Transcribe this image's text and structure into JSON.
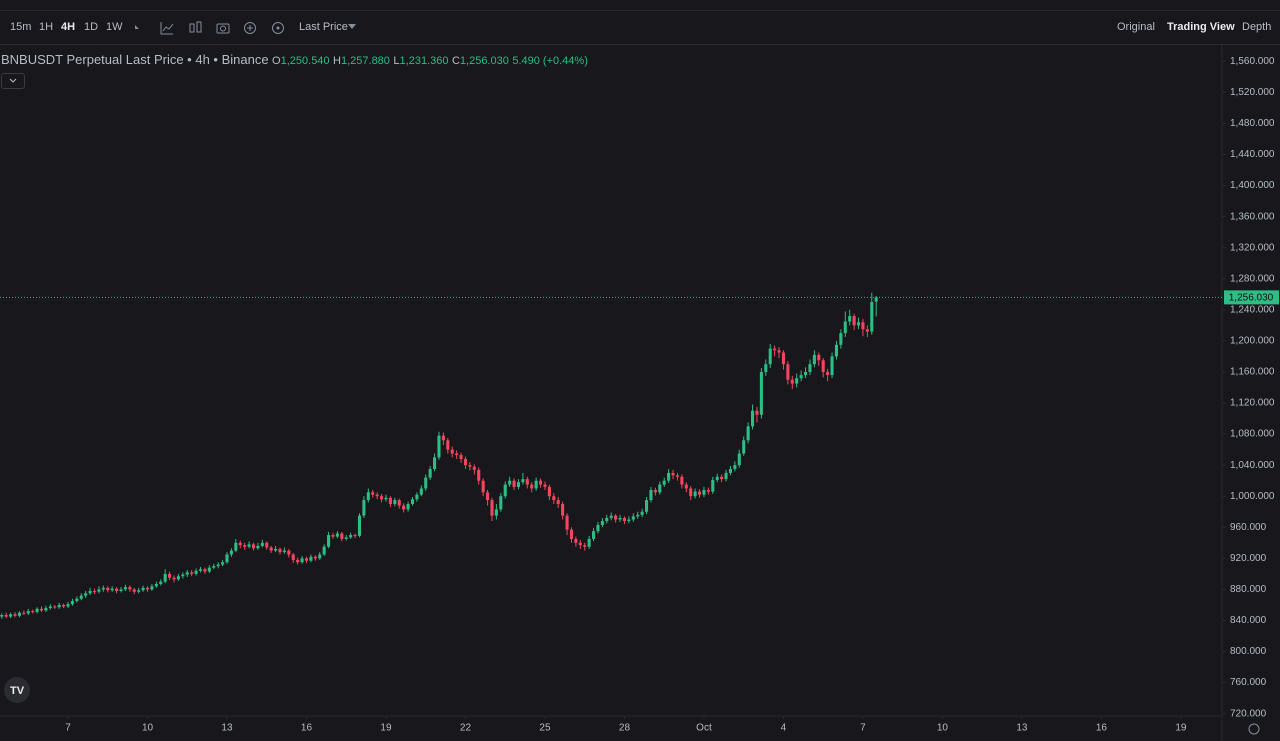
{
  "toolbar": {
    "intervals": [
      "15m",
      "1H",
      "4H",
      "1D",
      "1W"
    ],
    "price_source": "Last Price",
    "views": [
      "Original",
      "Trading View",
      "Depth"
    ]
  },
  "chart_data": {
    "type": "candlestick",
    "title": "BNBUSDT Perpetual Last Price • 4h • Binance",
    "header_values": [
      {
        "prefix": "O",
        "value": "1,250.540"
      },
      {
        "prefix": "H",
        "value": "1,257.880"
      },
      {
        "prefix": "L",
        "value": "1,231.360"
      },
      {
        "prefix": "C",
        "value": "1,256.030"
      }
    ],
    "change": "5.490 (+0.44%)",
    "up_color": "#2ebd85",
    "down_color": "#f6465d",
    "ylim": [
      717,
      1581
    ],
    "yticks": [
      {
        "value": 720,
        "label": "720.000"
      },
      {
        "value": 760,
        "label": "760.000"
      },
      {
        "value": 800,
        "label": "800.000"
      },
      {
        "value": 840,
        "label": "840.000"
      },
      {
        "value": 880,
        "label": "880.000"
      },
      {
        "value": 920,
        "label": "920.000"
      },
      {
        "value": 960,
        "label": "960.000"
      },
      {
        "value": 1000,
        "label": "1,000.000"
      },
      {
        "value": 1040,
        "label": "1,040.000"
      },
      {
        "value": 1080,
        "label": "1,080.000"
      },
      {
        "value": 1120,
        "label": "1,120.000"
      },
      {
        "value": 1160,
        "label": "1,160.000"
      },
      {
        "value": 1200,
        "label": "1,200.000"
      },
      {
        "value": 1240,
        "label": "1,240.000"
      },
      {
        "value": 1280,
        "label": "1,280.000"
      },
      {
        "value": 1320,
        "label": "1,320.000"
      },
      {
        "value": 1360,
        "label": "1,360.000"
      },
      {
        "value": 1400,
        "label": "1,400.000"
      },
      {
        "value": 1440,
        "label": "1,440.000"
      },
      {
        "value": 1480,
        "label": "1,480.000"
      },
      {
        "value": 1520,
        "label": "1,520.000"
      },
      {
        "value": 1560,
        "label": "1,560.000"
      }
    ],
    "xlim": [
      -0.4,
      276.3
    ],
    "xticks": [
      {
        "value": 15,
        "label": "7"
      },
      {
        "value": 33,
        "label": "10"
      },
      {
        "value": 51,
        "label": "13"
      },
      {
        "value": 69,
        "label": "16"
      },
      {
        "value": 87,
        "label": "19"
      },
      {
        "value": 105,
        "label": "22"
      },
      {
        "value": 123,
        "label": "25"
      },
      {
        "value": 141,
        "label": "28"
      },
      {
        "value": 159,
        "label": "Oct"
      },
      {
        "value": 177,
        "label": "4"
      },
      {
        "value": 195,
        "label": "7"
      },
      {
        "value": 213,
        "label": "10"
      },
      {
        "value": 231,
        "label": "13"
      },
      {
        "value": 249,
        "label": "16"
      },
      {
        "value": 267,
        "label": "19"
      }
    ],
    "last_price": {
      "value": 1256.03,
      "label": "1,256.030"
    },
    "ohlc": [
      [
        845,
        849,
        842,
        847
      ],
      [
        847,
        850,
        843,
        845
      ],
      [
        845,
        850,
        843,
        848
      ],
      [
        848,
        851,
        844,
        846
      ],
      [
        846,
        852,
        844,
        850
      ],
      [
        850,
        853,
        847,
        849
      ],
      [
        849,
        855,
        847,
        852
      ],
      [
        852,
        854,
        849,
        851
      ],
      [
        851,
        857,
        849,
        855
      ],
      [
        855,
        858,
        851,
        853
      ],
      [
        853,
        859,
        851,
        856
      ],
      [
        856,
        861,
        854,
        858
      ],
      [
        858,
        860,
        855,
        857
      ],
      [
        857,
        863,
        855,
        860
      ],
      [
        860,
        862,
        856,
        858
      ],
      [
        858,
        864,
        856,
        861
      ],
      [
        861,
        868,
        859,
        865
      ],
      [
        865,
        871,
        863,
        868
      ],
      [
        868,
        875,
        866,
        872
      ],
      [
        872,
        878,
        869,
        875
      ],
      [
        875,
        882,
        873,
        878
      ],
      [
        878,
        881,
        874,
        877
      ],
      [
        877,
        884,
        875,
        880
      ],
      [
        880,
        885,
        877,
        882
      ],
      [
        882,
        884,
        876,
        879
      ],
      [
        879,
        884,
        877,
        881
      ],
      [
        881,
        883,
        875,
        878
      ],
      [
        878,
        883,
        876,
        880
      ],
      [
        880,
        886,
        878,
        883
      ],
      [
        883,
        885,
        877,
        880
      ],
      [
        880,
        882,
        874,
        877
      ],
      [
        877,
        882,
        875,
        879
      ],
      [
        879,
        885,
        877,
        882
      ],
      [
        882,
        884,
        877,
        880
      ],
      [
        880,
        887,
        878,
        884
      ],
      [
        884,
        890,
        882,
        887
      ],
      [
        887,
        893,
        885,
        890
      ],
      [
        890,
        906,
        888,
        900
      ],
      [
        900,
        903,
        892,
        895
      ],
      [
        895,
        898,
        889,
        893
      ],
      [
        893,
        900,
        891,
        897
      ],
      [
        897,
        902,
        894,
        899
      ],
      [
        899,
        905,
        896,
        902
      ],
      [
        902,
        905,
        897,
        900
      ],
      [
        900,
        907,
        898,
        904
      ],
      [
        904,
        909,
        902,
        906
      ],
      [
        906,
        908,
        900,
        903
      ],
      [
        903,
        911,
        901,
        908
      ],
      [
        908,
        913,
        906,
        910
      ],
      [
        910,
        915,
        907,
        912
      ],
      [
        912,
        918,
        910,
        915
      ],
      [
        915,
        928,
        913,
        925
      ],
      [
        925,
        933,
        922,
        930
      ],
      [
        930,
        945,
        928,
        940
      ],
      [
        940,
        943,
        933,
        937
      ],
      [
        937,
        940,
        931,
        935
      ],
      [
        935,
        942,
        933,
        938
      ],
      [
        938,
        940,
        930,
        933
      ],
      [
        933,
        940,
        931,
        936
      ],
      [
        936,
        944,
        934,
        940
      ],
      [
        940,
        942,
        931,
        934
      ],
      [
        934,
        936,
        927,
        930
      ],
      [
        930,
        936,
        928,
        932
      ],
      [
        932,
        934,
        925,
        928
      ],
      [
        928,
        934,
        926,
        930
      ],
      [
        930,
        932,
        921,
        925
      ],
      [
        925,
        927,
        914,
        918
      ],
      [
        918,
        921,
        912,
        915
      ],
      [
        915,
        923,
        913,
        920
      ],
      [
        920,
        922,
        914,
        917
      ],
      [
        917,
        925,
        915,
        922
      ],
      [
        922,
        924,
        917,
        920
      ],
      [
        920,
        928,
        918,
        925
      ],
      [
        925,
        938,
        923,
        935
      ],
      [
        935,
        954,
        933,
        950
      ],
      [
        950,
        953,
        945,
        948
      ],
      [
        948,
        955,
        946,
        952
      ],
      [
        952,
        954,
        942,
        945
      ],
      [
        945,
        950,
        943,
        947
      ],
      [
        947,
        953,
        945,
        950
      ],
      [
        950,
        952,
        946,
        949
      ],
      [
        949,
        978,
        947,
        975
      ],
      [
        975,
        1000,
        972,
        995
      ],
      [
        995,
        1010,
        992,
        1005
      ],
      [
        1005,
        1008,
        998,
        1002
      ],
      [
        1002,
        1005,
        996,
        1000
      ],
      [
        1000,
        1003,
        992,
        996
      ],
      [
        996,
        1002,
        993,
        998
      ],
      [
        998,
        1000,
        986,
        990
      ],
      [
        990,
        998,
        987,
        995
      ],
      [
        995,
        997,
        984,
        988
      ],
      [
        988,
        991,
        979,
        983
      ],
      [
        983,
        993,
        980,
        990
      ],
      [
        990,
        999,
        988,
        996
      ],
      [
        996,
        1005,
        993,
        1002
      ],
      [
        1002,
        1014,
        1000,
        1010
      ],
      [
        1010,
        1028,
        1007,
        1024
      ],
      [
        1024,
        1039,
        1021,
        1035
      ],
      [
        1035,
        1055,
        1032,
        1050
      ],
      [
        1050,
        1083,
        1047,
        1078
      ],
      [
        1078,
        1082,
        1066,
        1072
      ],
      [
        1072,
        1075,
        1055,
        1060
      ],
      [
        1060,
        1064,
        1050,
        1055
      ],
      [
        1055,
        1059,
        1048,
        1053
      ],
      [
        1053,
        1056,
        1043,
        1048
      ],
      [
        1048,
        1051,
        1035,
        1040
      ],
      [
        1040,
        1044,
        1033,
        1038
      ],
      [
        1038,
        1041,
        1028,
        1034
      ],
      [
        1034,
        1037,
        1015,
        1020
      ],
      [
        1020,
        1023,
        1000,
        1005
      ],
      [
        1005,
        1008,
        988,
        995
      ],
      [
        995,
        998,
        968,
        975
      ],
      [
        975,
        990,
        970,
        983
      ],
      [
        983,
        1004,
        980,
        1000
      ],
      [
        1000,
        1019,
        997,
        1015
      ],
      [
        1015,
        1025,
        1012,
        1020
      ],
      [
        1020,
        1023,
        1008,
        1012
      ],
      [
        1012,
        1022,
        1009,
        1018
      ],
      [
        1018,
        1030,
        1015,
        1022
      ],
      [
        1022,
        1025,
        1010,
        1015
      ],
      [
        1015,
        1018,
        1005,
        1010
      ],
      [
        1010,
        1024,
        1007,
        1020
      ],
      [
        1020,
        1023,
        1011,
        1015
      ],
      [
        1015,
        1019,
        1008,
        1012
      ],
      [
        1012,
        1015,
        995,
        1000
      ],
      [
        1000,
        1004,
        990,
        995
      ],
      [
        995,
        999,
        985,
        990
      ],
      [
        990,
        993,
        970,
        975
      ],
      [
        975,
        978,
        950,
        957
      ],
      [
        957,
        960,
        940,
        945
      ],
      [
        945,
        948,
        935,
        940
      ],
      [
        940,
        944,
        932,
        937
      ],
      [
        937,
        940,
        930,
        935
      ],
      [
        935,
        949,
        932,
        945
      ],
      [
        945,
        959,
        942,
        955
      ],
      [
        955,
        967,
        952,
        963
      ],
      [
        963,
        972,
        960,
        968
      ],
      [
        968,
        976,
        965,
        972
      ],
      [
        972,
        979,
        969,
        975
      ],
      [
        975,
        977,
        966,
        970
      ],
      [
        970,
        976,
        967,
        972
      ],
      [
        972,
        974,
        964,
        968
      ],
      [
        968,
        974,
        965,
        970
      ],
      [
        970,
        978,
        967,
        974
      ],
      [
        974,
        980,
        971,
        976
      ],
      [
        976,
        984,
        973,
        980
      ],
      [
        980,
        999,
        977,
        995
      ],
      [
        995,
        1012,
        992,
        1008
      ],
      [
        1008,
        1011,
        1001,
        1005
      ],
      [
        1005,
        1019,
        1002,
        1015
      ],
      [
        1015,
        1024,
        1012,
        1020
      ],
      [
        1020,
        1035,
        1017,
        1030
      ],
      [
        1030,
        1034,
        1022,
        1027
      ],
      [
        1027,
        1030,
        1020,
        1025
      ],
      [
        1025,
        1028,
        1010,
        1015
      ],
      [
        1015,
        1018,
        1005,
        1010
      ],
      [
        1010,
        1013,
        995,
        1000
      ],
      [
        1000,
        1010,
        997,
        1006
      ],
      [
        1006,
        1009,
        998,
        1002
      ],
      [
        1002,
        1012,
        999,
        1008
      ],
      [
        1008,
        1011,
        1002,
        1006
      ],
      [
        1006,
        1025,
        1003,
        1021
      ],
      [
        1021,
        1029,
        1018,
        1025
      ],
      [
        1025,
        1028,
        1018,
        1022
      ],
      [
        1022,
        1034,
        1019,
        1030
      ],
      [
        1030,
        1039,
        1027,
        1035
      ],
      [
        1035,
        1045,
        1032,
        1040
      ],
      [
        1040,
        1060,
        1037,
        1055
      ],
      [
        1055,
        1077,
        1052,
        1072
      ],
      [
        1072,
        1095,
        1068,
        1090
      ],
      [
        1090,
        1118,
        1086,
        1110
      ],
      [
        1110,
        1115,
        1095,
        1105
      ],
      [
        1105,
        1165,
        1100,
        1160
      ],
      [
        1160,
        1176,
        1155,
        1170
      ],
      [
        1170,
        1196,
        1165,
        1190
      ],
      [
        1190,
        1194,
        1180,
        1188
      ],
      [
        1188,
        1192,
        1178,
        1185
      ],
      [
        1185,
        1188,
        1163,
        1170
      ],
      [
        1170,
        1174,
        1144,
        1150
      ],
      [
        1150,
        1155,
        1138,
        1145
      ],
      [
        1145,
        1158,
        1140,
        1152
      ],
      [
        1152,
        1162,
        1148,
        1156
      ],
      [
        1156,
        1166,
        1152,
        1160
      ],
      [
        1160,
        1176,
        1156,
        1170
      ],
      [
        1170,
        1188,
        1166,
        1182
      ],
      [
        1182,
        1185,
        1168,
        1175
      ],
      [
        1175,
        1178,
        1153,
        1160
      ],
      [
        1160,
        1164,
        1148,
        1156
      ],
      [
        1156,
        1185,
        1152,
        1180
      ],
      [
        1180,
        1200,
        1176,
        1195
      ],
      [
        1195,
        1215,
        1190,
        1210
      ],
      [
        1210,
        1238,
        1205,
        1225
      ],
      [
        1225,
        1240,
        1220,
        1232
      ],
      [
        1232,
        1235,
        1214,
        1220
      ],
      [
        1220,
        1230,
        1215,
        1224
      ],
      [
        1224,
        1228,
        1206,
        1215
      ],
      [
        1215,
        1220,
        1205,
        1212
      ],
      [
        1212,
        1262,
        1208,
        1250
      ],
      [
        1250.54,
        1257.88,
        1231.36,
        1256.03
      ]
    ]
  }
}
